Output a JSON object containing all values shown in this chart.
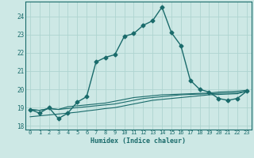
{
  "xlabel": "Humidex (Indice chaleur)",
  "xlim": [
    -0.5,
    23.5
  ],
  "ylim": [
    17.8,
    24.8
  ],
  "yticks": [
    18,
    19,
    20,
    21,
    22,
    23,
    24
  ],
  "xticks": [
    0,
    1,
    2,
    3,
    4,
    5,
    6,
    7,
    8,
    9,
    10,
    11,
    12,
    13,
    14,
    15,
    16,
    17,
    18,
    19,
    20,
    21,
    22,
    23
  ],
  "background_color": "#cde8e5",
  "grid_color": "#aed4d0",
  "line_color": "#1a6b6b",
  "curves": [
    {
      "x": [
        0,
        1,
        2,
        3,
        4,
        5,
        6,
        7,
        8,
        9,
        10,
        11,
        12,
        13,
        14,
        15,
        16,
        17,
        18,
        19,
        20,
        21,
        22,
        23
      ],
      "y": [
        18.9,
        18.7,
        19.0,
        18.4,
        18.7,
        19.3,
        19.6,
        21.5,
        21.75,
        21.9,
        22.9,
        23.05,
        23.5,
        23.75,
        24.5,
        23.1,
        22.4,
        20.5,
        20.0,
        19.85,
        19.5,
        19.4,
        19.5,
        19.9
      ],
      "marker": "D",
      "markersize": 2.5,
      "linewidth": 1.0
    },
    {
      "x": [
        0,
        1,
        2,
        3,
        4,
        5,
        6,
        7,
        8,
        9,
        10,
        11,
        12,
        13,
        14,
        15,
        16,
        17,
        18,
        19,
        20,
        21,
        22,
        23
      ],
      "y": [
        18.5,
        18.55,
        18.6,
        18.65,
        18.7,
        18.75,
        18.82,
        18.88,
        18.95,
        19.0,
        19.1,
        19.2,
        19.3,
        19.4,
        19.45,
        19.5,
        19.55,
        19.6,
        19.65,
        19.7,
        19.72,
        19.74,
        19.76,
        19.9
      ],
      "marker": null,
      "markersize": 0,
      "linewidth": 0.8
    },
    {
      "x": [
        0,
        1,
        2,
        3,
        4,
        5,
        6,
        7,
        8,
        9,
        10,
        11,
        12,
        13,
        14,
        15,
        16,
        17,
        18,
        19,
        20,
        21,
        22,
        23
      ],
      "y": [
        18.9,
        18.85,
        18.95,
        18.9,
        18.95,
        19.0,
        19.05,
        19.1,
        19.15,
        19.2,
        19.3,
        19.4,
        19.5,
        19.55,
        19.6,
        19.65,
        19.7,
        19.72,
        19.74,
        19.76,
        19.78,
        19.8,
        19.82,
        19.9
      ],
      "marker": null,
      "markersize": 0,
      "linewidth": 0.8
    },
    {
      "x": [
        0,
        1,
        2,
        3,
        4,
        5,
        6,
        7,
        8,
        9,
        10,
        11,
        12,
        13,
        14,
        15,
        16,
        17,
        18,
        19,
        20,
        21,
        22,
        23
      ],
      "y": [
        18.9,
        18.85,
        18.95,
        18.9,
        19.05,
        19.1,
        19.15,
        19.2,
        19.25,
        19.35,
        19.45,
        19.55,
        19.6,
        19.65,
        19.7,
        19.72,
        19.74,
        19.76,
        19.78,
        19.8,
        19.85,
        19.88,
        19.9,
        19.95
      ],
      "marker": null,
      "markersize": 0,
      "linewidth": 0.8
    }
  ]
}
